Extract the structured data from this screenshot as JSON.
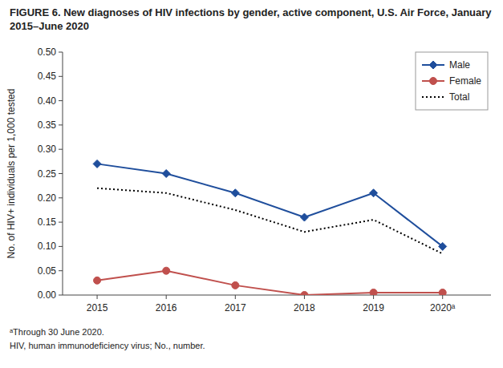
{
  "chart_data": {
    "type": "line",
    "title": "FIGURE 6. New diagnoses of HIV infections by gender, active component, U.S. Air Force, January 2015–June 2020",
    "y_label": "No. of HIV+ individuals per 1,000 tested",
    "x": [
      2015,
      2016,
      2017,
      2018,
      2019,
      2020
    ],
    "series": [
      {
        "name": "Male",
        "color": "#1f4e9c",
        "marker": "diamond",
        "line_style": "solid",
        "values": [
          0.27,
          0.25,
          0.21,
          0.16,
          0.21,
          0.1
        ]
      },
      {
        "name": "Female",
        "color": "#c0504d",
        "marker": "circle",
        "line_style": "solid",
        "values": [
          0.03,
          0.05,
          0.02,
          0.0,
          0.005,
          0.005
        ]
      },
      {
        "name": "Total",
        "color": "#000000",
        "marker": "none",
        "line_style": "dotted",
        "values": [
          0.22,
          0.21,
          0.175,
          0.13,
          0.155,
          0.085
        ]
      }
    ],
    "xlim": [
      2014.5,
      2020.7
    ],
    "xticks": [
      2015,
      2016,
      2017,
      2018,
      2019,
      {
        "value": 2020,
        "label": "2020ᵃ"
      }
    ],
    "ylim": [
      0,
      0.5
    ],
    "yticks": [
      {
        "value": 0.0,
        "label": "0.00"
      },
      0.05,
      {
        "value": 0.1,
        "label": "0.10"
      },
      0.15,
      {
        "value": 0.2,
        "label": "0.20"
      },
      0.25,
      {
        "value": 0.3,
        "label": "0.30"
      },
      0.35,
      {
        "value": 0.4,
        "label": "0.40"
      },
      0.45,
      {
        "value": 0.5,
        "label": "0.50"
      }
    ],
    "grid": false,
    "legend": "upper right",
    "annotations": [
      "ᵃThrough 30 June 2020.",
      "HIV, human immunodeficiency virus; No., number."
    ]
  }
}
